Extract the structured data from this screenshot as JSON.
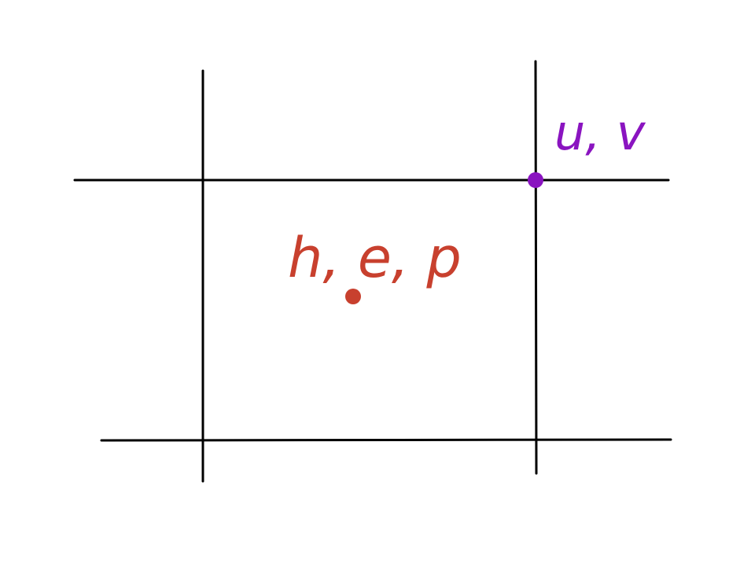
{
  "diagram": {
    "cell_center_label": "h, e, p",
    "corner_label": "u, v",
    "cell_center_color": "#c8402e",
    "corner_color": "#8a14c0",
    "line_color": "#000000",
    "background": "#ffffff"
  }
}
